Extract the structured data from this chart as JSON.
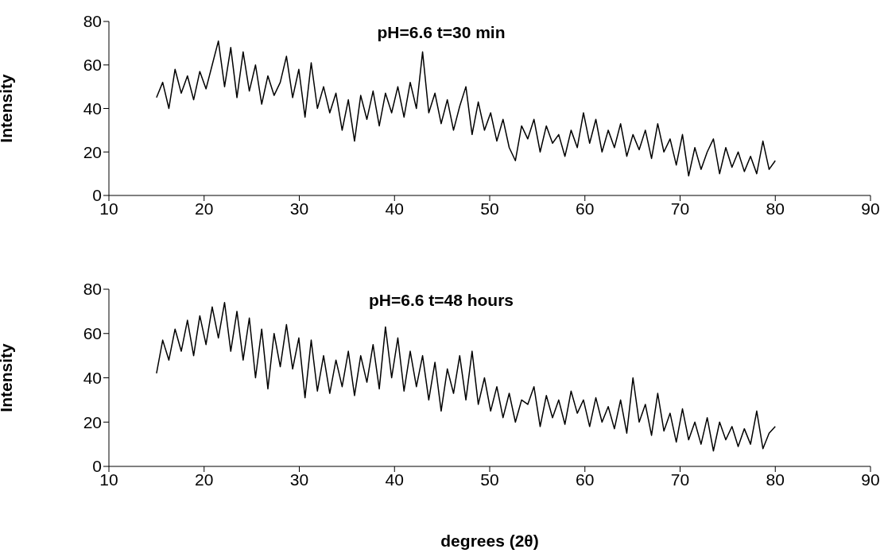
{
  "chart_data": [
    {
      "type": "line",
      "title": "pH=6.6 t=30 min",
      "ylabel": "Intensity",
      "x": [
        15,
        15.65,
        16.3,
        16.95,
        17.6,
        18.25,
        18.9,
        19.55,
        20.2,
        20.85,
        21.5,
        22.15,
        22.8,
        23.45,
        24.1,
        24.75,
        25.4,
        26.05,
        26.7,
        27.35,
        28,
        28.65,
        29.3,
        29.95,
        30.6,
        31.25,
        31.9,
        32.55,
        33.2,
        33.85,
        34.5,
        35.15,
        35.8,
        36.45,
        37.1,
        37.75,
        38.4,
        39.05,
        39.7,
        40.35,
        41,
        41.65,
        42.3,
        42.95,
        43.6,
        44.25,
        44.9,
        45.55,
        46.2,
        46.85,
        47.5,
        48.15,
        48.8,
        49.45,
        50.1,
        50.75,
        51.4,
        52.05,
        52.7,
        53.35,
        54,
        54.65,
        55.3,
        55.95,
        56.6,
        57.25,
        57.9,
        58.55,
        59.2,
        59.85,
        60.5,
        61.15,
        61.8,
        62.45,
        63.1,
        63.75,
        64.4,
        65.05,
        65.7,
        66.35,
        67,
        67.65,
        68.3,
        68.95,
        69.6,
        70.25,
        70.9,
        71.55,
        72.2,
        72.85,
        73.5,
        74.15,
        74.8,
        75.45,
        76.1,
        76.75,
        77.4,
        78.05,
        78.7,
        79.35,
        80
      ],
      "xlim": [
        10,
        90
      ],
      "xticks": [
        10,
        20,
        30,
        40,
        50,
        60,
        70,
        80,
        90
      ],
      "ylim": [
        0,
        80
      ],
      "yticks": [
        0,
        20,
        40,
        60,
        80
      ],
      "grid": false,
      "series": [
        {
          "color": "#000000",
          "values": [
            45,
            52,
            40,
            58,
            47,
            55,
            44,
            57,
            49,
            60,
            71,
            50,
            68,
            45,
            66,
            48,
            60,
            42,
            55,
            46,
            52,
            64,
            45,
            58,
            36,
            61,
            40,
            50,
            38,
            47,
            30,
            44,
            25,
            46,
            35,
            48,
            32,
            47,
            38,
            50,
            36,
            52,
            40,
            66,
            38,
            47,
            33,
            44,
            30,
            41,
            50,
            28,
            43,
            30,
            38,
            25,
            35,
            22,
            16,
            32,
            26,
            35,
            20,
            32,
            24,
            28,
            18,
            30,
            22,
            38,
            24,
            35,
            20,
            30,
            22,
            33,
            18,
            28,
            21,
            30,
            17,
            33,
            20,
            26,
            14,
            28,
            9,
            22,
            12,
            20,
            26,
            10,
            22,
            13,
            20,
            11,
            18,
            10,
            25,
            12,
            16
          ]
        }
      ]
    },
    {
      "type": "line",
      "title": "pH=6.6 t=48 hours",
      "ylabel": "Intensity",
      "xlabel": "degrees (2θ)",
      "x": [
        15,
        15.65,
        16.3,
        16.95,
        17.6,
        18.25,
        18.9,
        19.55,
        20.2,
        20.85,
        21.5,
        22.15,
        22.8,
        23.45,
        24.1,
        24.75,
        25.4,
        26.05,
        26.7,
        27.35,
        28,
        28.65,
        29.3,
        29.95,
        30.6,
        31.25,
        31.9,
        32.55,
        33.2,
        33.85,
        34.5,
        35.15,
        35.8,
        36.45,
        37.1,
        37.75,
        38.4,
        39.05,
        39.7,
        40.35,
        41,
        41.65,
        42.3,
        42.95,
        43.6,
        44.25,
        44.9,
        45.55,
        46.2,
        46.85,
        47.5,
        48.15,
        48.8,
        49.45,
        50.1,
        50.75,
        51.4,
        52.05,
        52.7,
        53.35,
        54,
        54.65,
        55.3,
        55.95,
        56.6,
        57.25,
        57.9,
        58.55,
        59.2,
        59.85,
        60.5,
        61.15,
        61.8,
        62.45,
        63.1,
        63.75,
        64.4,
        65.05,
        65.7,
        66.35,
        67,
        67.65,
        68.3,
        68.95,
        69.6,
        70.25,
        70.9,
        71.55,
        72.2,
        72.85,
        73.5,
        74.15,
        74.8,
        75.45,
        76.1,
        76.75,
        77.4,
        78.05,
        78.7,
        79.35,
        80
      ],
      "xlim": [
        10,
        90
      ],
      "xticks": [
        10,
        20,
        30,
        40,
        50,
        60,
        70,
        80,
        90
      ],
      "ylim": [
        0,
        80
      ],
      "yticks": [
        0,
        20,
        40,
        60,
        80
      ],
      "grid": false,
      "series": [
        {
          "color": "#000000",
          "values": [
            42,
            57,
            48,
            62,
            52,
            66,
            50,
            68,
            55,
            72,
            58,
            74,
            52,
            70,
            48,
            67,
            40,
            62,
            35,
            60,
            45,
            64,
            44,
            58,
            31,
            57,
            34,
            50,
            33,
            48,
            36,
            52,
            32,
            50,
            38,
            55,
            35,
            63,
            40,
            58,
            34,
            52,
            36,
            50,
            30,
            47,
            25,
            44,
            33,
            50,
            30,
            52,
            28,
            40,
            25,
            36,
            22,
            33,
            20,
            30,
            28,
            36,
            18,
            32,
            22,
            30,
            19,
            34,
            24,
            30,
            18,
            31,
            20,
            27,
            17,
            30,
            15,
            40,
            20,
            28,
            14,
            33,
            16,
            24,
            11,
            26,
            12,
            20,
            10,
            22,
            7,
            20,
            12,
            18,
            9,
            17,
            10,
            25,
            8,
            15,
            18
          ]
        }
      ]
    }
  ]
}
